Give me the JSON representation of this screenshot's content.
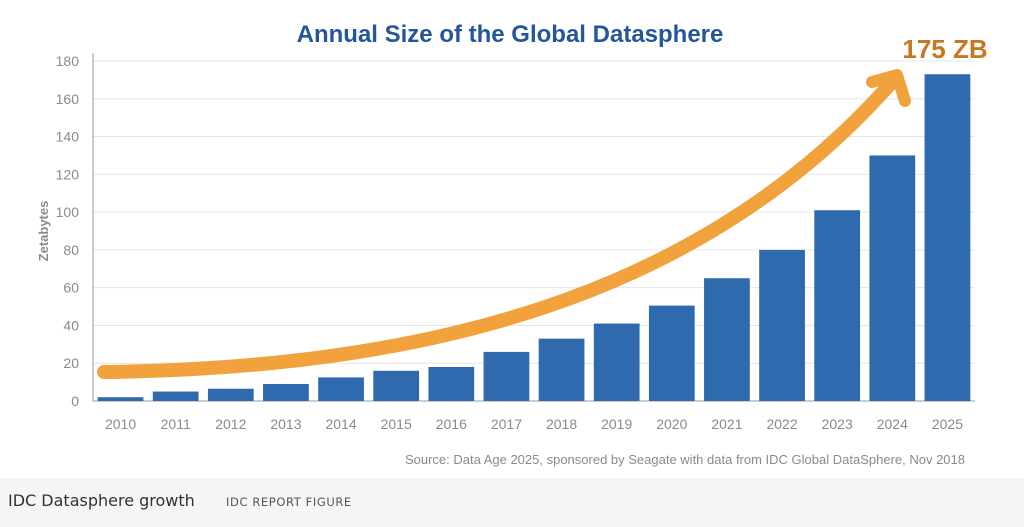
{
  "chart_data": {
    "type": "bar",
    "title": "Annual Size of the Global Datasphere",
    "ylabel": "Zetabytes",
    "xlabel": "",
    "categories": [
      "2010",
      "2011",
      "2012",
      "2013",
      "2014",
      "2015",
      "2016",
      "2017",
      "2018",
      "2019",
      "2020",
      "2021",
      "2022",
      "2023",
      "2024",
      "2025"
    ],
    "values": [
      2,
      5,
      6.5,
      9,
      12.5,
      16,
      18,
      26,
      33,
      41,
      50.5,
      65,
      80,
      101,
      130,
      175
    ],
    "ylim": [
      0,
      180
    ],
    "yticks": [
      0,
      20,
      40,
      60,
      80,
      100,
      120,
      140,
      160,
      180
    ],
    "grid": true,
    "bar_color": "#2e6aad",
    "annotation": {
      "text": "175 ZB",
      "style": "curved arrow",
      "color": "#f2a23c",
      "text_color": "#c8761f"
    },
    "source": "Source: Data Age 2025, sponsored by Seagate with data from IDC Global DataSphere, Nov 2018"
  },
  "caption": {
    "text": "IDC Datasphere growth",
    "credit": "IDC REPORT FIGURE"
  },
  "colors": {
    "title": "#25569c",
    "axis_text": "#8a8a8a",
    "grid": "#e6e6e6"
  }
}
